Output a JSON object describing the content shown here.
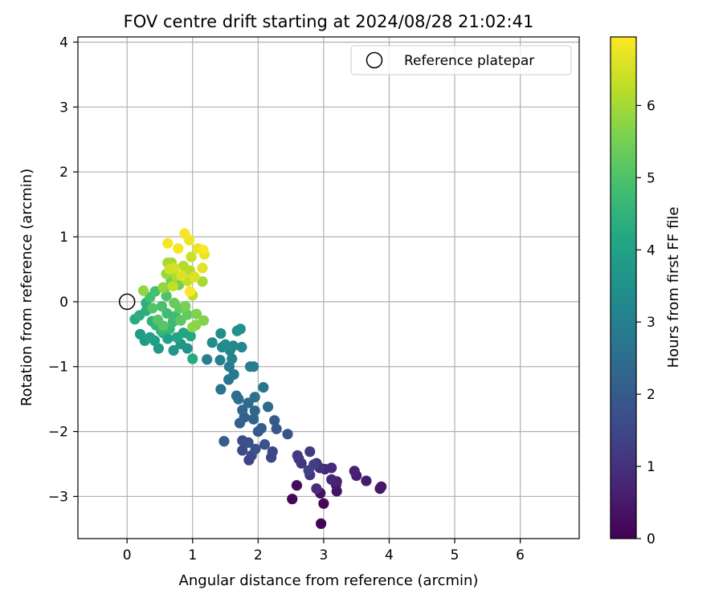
{
  "chart_data": {
    "type": "scatter",
    "title": "FOV centre drift starting at 2024/08/28 21:02:41",
    "xlabel": "Angular distance from reference (arcmin)",
    "ylabel": "Rotation from reference (arcmin)",
    "xlim": [
      -0.75,
      6.9
    ],
    "ylim": [
      -3.65,
      4.08
    ],
    "xticks": [
      0,
      1,
      2,
      3,
      4,
      5,
      6
    ],
    "yticks": [
      -3,
      -2,
      -1,
      0,
      1,
      2,
      3,
      4
    ],
    "xtick_labels": [
      "0",
      "1",
      "2",
      "3",
      "4",
      "5",
      "6"
    ],
    "ytick_labels": [
      "−3",
      "−2",
      "−1",
      "0",
      "1",
      "2",
      "3",
      "4"
    ],
    "grid": true,
    "legend": {
      "position": "top-right",
      "entries": [
        {
          "label": "Reference platepar",
          "marker": "open-circle"
        }
      ]
    },
    "reference_point": {
      "x": 0,
      "y": 0
    },
    "colorbar": {
      "label": "Hours from first FF file",
      "colormap": "viridis",
      "range": [
        0,
        6.95
      ],
      "ticks": [
        0,
        1,
        2,
        3,
        4,
        5,
        6
      ],
      "tick_labels": [
        "0",
        "1",
        "2",
        "3",
        "4",
        "5",
        "6"
      ]
    },
    "series": [
      {
        "colored_by": "hours",
        "points": [
          [
            2.96,
            -3.42,
            0.05
          ],
          [
            2.52,
            -3.04,
            0.1
          ],
          [
            3.0,
            -3.11,
            0.15
          ],
          [
            2.59,
            -2.83,
            0.2
          ],
          [
            2.95,
            -2.95,
            0.3
          ],
          [
            3.2,
            -2.92,
            0.35
          ],
          [
            3.19,
            -2.82,
            0.4
          ],
          [
            3.86,
            -2.88,
            0.45
          ],
          [
            3.88,
            -2.85,
            0.5
          ],
          [
            3.65,
            -2.76,
            0.55
          ],
          [
            3.5,
            -2.68,
            0.6
          ],
          [
            3.47,
            -2.61,
            0.65
          ],
          [
            3.2,
            -2.77,
            0.7
          ],
          [
            3.12,
            -2.74,
            0.75
          ],
          [
            3.02,
            -2.58,
            0.8
          ],
          [
            3.12,
            -2.56,
            0.85
          ],
          [
            2.89,
            -2.88,
            0.9
          ],
          [
            2.94,
            -2.56,
            0.95
          ],
          [
            2.89,
            -2.49,
            1.0
          ],
          [
            2.79,
            -2.67,
            1.05
          ],
          [
            2.66,
            -2.49,
            1.1
          ],
          [
            2.62,
            -2.42,
            1.15
          ],
          [
            2.6,
            -2.37,
            1.2
          ],
          [
            2.79,
            -2.31,
            1.25
          ],
          [
            2.85,
            -2.51,
            1.3
          ],
          [
            2.77,
            -2.6,
            1.35
          ],
          [
            1.86,
            -2.44,
            1.4
          ],
          [
            2.2,
            -2.4,
            1.45
          ],
          [
            2.22,
            -2.31,
            1.5
          ],
          [
            1.9,
            -2.37,
            1.55
          ],
          [
            1.76,
            -2.29,
            1.6
          ],
          [
            1.76,
            -2.14,
            1.65
          ],
          [
            1.85,
            -2.17,
            1.7
          ],
          [
            1.96,
            -2.27,
            1.75
          ],
          [
            2.1,
            -2.2,
            1.8
          ],
          [
            2.45,
            -2.04,
            1.85
          ],
          [
            2.28,
            -1.96,
            1.9
          ],
          [
            2.0,
            -2.0,
            1.95
          ],
          [
            2.25,
            -1.83,
            2.0
          ],
          [
            1.48,
            -2.15,
            2.05
          ],
          [
            2.05,
            -1.95,
            2.1
          ],
          [
            1.79,
            -1.78,
            2.15
          ],
          [
            1.72,
            -1.87,
            2.2
          ],
          [
            1.93,
            -1.81,
            2.25
          ],
          [
            1.76,
            -1.67,
            2.3
          ],
          [
            1.95,
            -1.68,
            2.35
          ],
          [
            2.15,
            -1.62,
            2.4
          ],
          [
            1.85,
            -1.56,
            2.45
          ],
          [
            1.7,
            -1.5,
            2.5
          ],
          [
            1.67,
            -1.45,
            2.55
          ],
          [
            1.95,
            -1.47,
            2.6
          ],
          [
            1.43,
            -1.35,
            2.65
          ],
          [
            2.08,
            -1.32,
            2.7
          ],
          [
            1.55,
            -1.2,
            2.75
          ],
          [
            1.63,
            -1.12,
            2.8
          ],
          [
            1.56,
            -1.0,
            2.85
          ],
          [
            1.88,
            -1.0,
            2.9
          ],
          [
            1.93,
            -1.0,
            2.95
          ],
          [
            1.42,
            -0.9,
            3.0
          ],
          [
            1.22,
            -0.89,
            3.05
          ],
          [
            1.6,
            -0.88,
            3.1
          ],
          [
            1.57,
            -0.75,
            3.15
          ],
          [
            1.62,
            -0.68,
            3.2
          ],
          [
            1.75,
            -0.7,
            3.25
          ],
          [
            1.45,
            -0.7,
            3.3
          ],
          [
            1.3,
            -0.63,
            3.35
          ],
          [
            1.5,
            -0.66,
            3.4
          ],
          [
            1.43,
            -0.49,
            3.45
          ],
          [
            1.68,
            -0.45,
            3.5
          ],
          [
            1.73,
            -0.42,
            3.55
          ],
          [
            0.92,
            -0.72,
            3.6
          ],
          [
            0.71,
            -0.75,
            3.65
          ],
          [
            0.82,
            -0.65,
            3.7
          ],
          [
            0.48,
            -0.72,
            3.75
          ],
          [
            0.27,
            -0.6,
            3.8
          ],
          [
            0.2,
            -0.5,
            3.85
          ],
          [
            0.42,
            -0.6,
            3.9
          ],
          [
            0.62,
            -0.57,
            3.95
          ],
          [
            0.35,
            -0.55,
            4.0
          ],
          [
            0.55,
            -0.48,
            4.05
          ],
          [
            0.76,
            -0.55,
            4.1
          ],
          [
            0.86,
            -0.48,
            4.15
          ],
          [
            0.97,
            -0.53,
            4.2
          ],
          [
            1.0,
            -0.88,
            4.25
          ],
          [
            0.12,
            -0.27,
            4.3
          ],
          [
            0.19,
            -0.21,
            4.35
          ],
          [
            0.29,
            -0.14,
            4.4
          ],
          [
            0.29,
            -0.02,
            4.45
          ],
          [
            0.38,
            -0.3,
            4.5
          ],
          [
            0.44,
            -0.36,
            4.55
          ],
          [
            0.52,
            -0.45,
            4.6
          ],
          [
            0.65,
            -0.42,
            4.65
          ],
          [
            0.7,
            -0.31,
            4.7
          ],
          [
            0.61,
            -0.18,
            4.75
          ],
          [
            0.74,
            -0.22,
            4.8
          ],
          [
            0.35,
            0.07,
            4.85
          ],
          [
            0.43,
            0.16,
            4.9
          ],
          [
            0.53,
            -0.07,
            4.95
          ],
          [
            0.6,
            0.09,
            5.0
          ],
          [
            0.39,
            -0.1,
            5.05
          ],
          [
            0.47,
            -0.28,
            5.1
          ],
          [
            0.55,
            -0.37,
            5.15
          ],
          [
            0.82,
            -0.29,
            5.2
          ],
          [
            0.92,
            -0.2,
            5.25
          ],
          [
            0.8,
            -0.1,
            5.3
          ],
          [
            0.72,
            -0.02,
            5.35
          ],
          [
            0.57,
            0.21,
            5.4
          ],
          [
            0.67,
            0.33,
            5.45
          ],
          [
            0.79,
            0.26,
            5.5
          ],
          [
            0.89,
            -0.07,
            5.55
          ],
          [
            1.06,
            -0.19,
            5.6
          ],
          [
            1.17,
            -0.29,
            5.65
          ],
          [
            1.05,
            -0.36,
            5.7
          ],
          [
            1.0,
            -0.39,
            5.75
          ],
          [
            0.25,
            0.17,
            5.8
          ],
          [
            0.55,
            0.22,
            5.85
          ],
          [
            0.6,
            0.43,
            5.9
          ],
          [
            0.68,
            0.6,
            5.95
          ],
          [
            1.15,
            0.31,
            6.0
          ],
          [
            0.62,
            0.6,
            6.05
          ],
          [
            0.75,
            0.4,
            6.1
          ],
          [
            0.86,
            0.55,
            6.15
          ],
          [
            0.96,
            0.48,
            6.2
          ],
          [
            1.0,
            0.1,
            6.25
          ],
          [
            0.7,
            0.24,
            6.3
          ],
          [
            0.92,
            0.32,
            6.35
          ],
          [
            0.98,
            0.69,
            6.4
          ],
          [
            0.65,
            0.5,
            6.45
          ],
          [
            0.72,
            0.52,
            6.5
          ],
          [
            0.83,
            0.4,
            6.55
          ],
          [
            1.03,
            0.38,
            6.6
          ],
          [
            1.15,
            0.52,
            6.65
          ],
          [
            1.18,
            0.73,
            6.7
          ],
          [
            1.08,
            0.82,
            6.75
          ],
          [
            0.95,
            0.95,
            6.8
          ],
          [
            0.88,
            1.05,
            6.85
          ],
          [
            0.78,
            0.82,
            6.88
          ],
          [
            0.62,
            0.9,
            6.9
          ],
          [
            1.16,
            0.8,
            6.92
          ],
          [
            0.96,
            0.16,
            6.93
          ]
        ]
      }
    ]
  }
}
